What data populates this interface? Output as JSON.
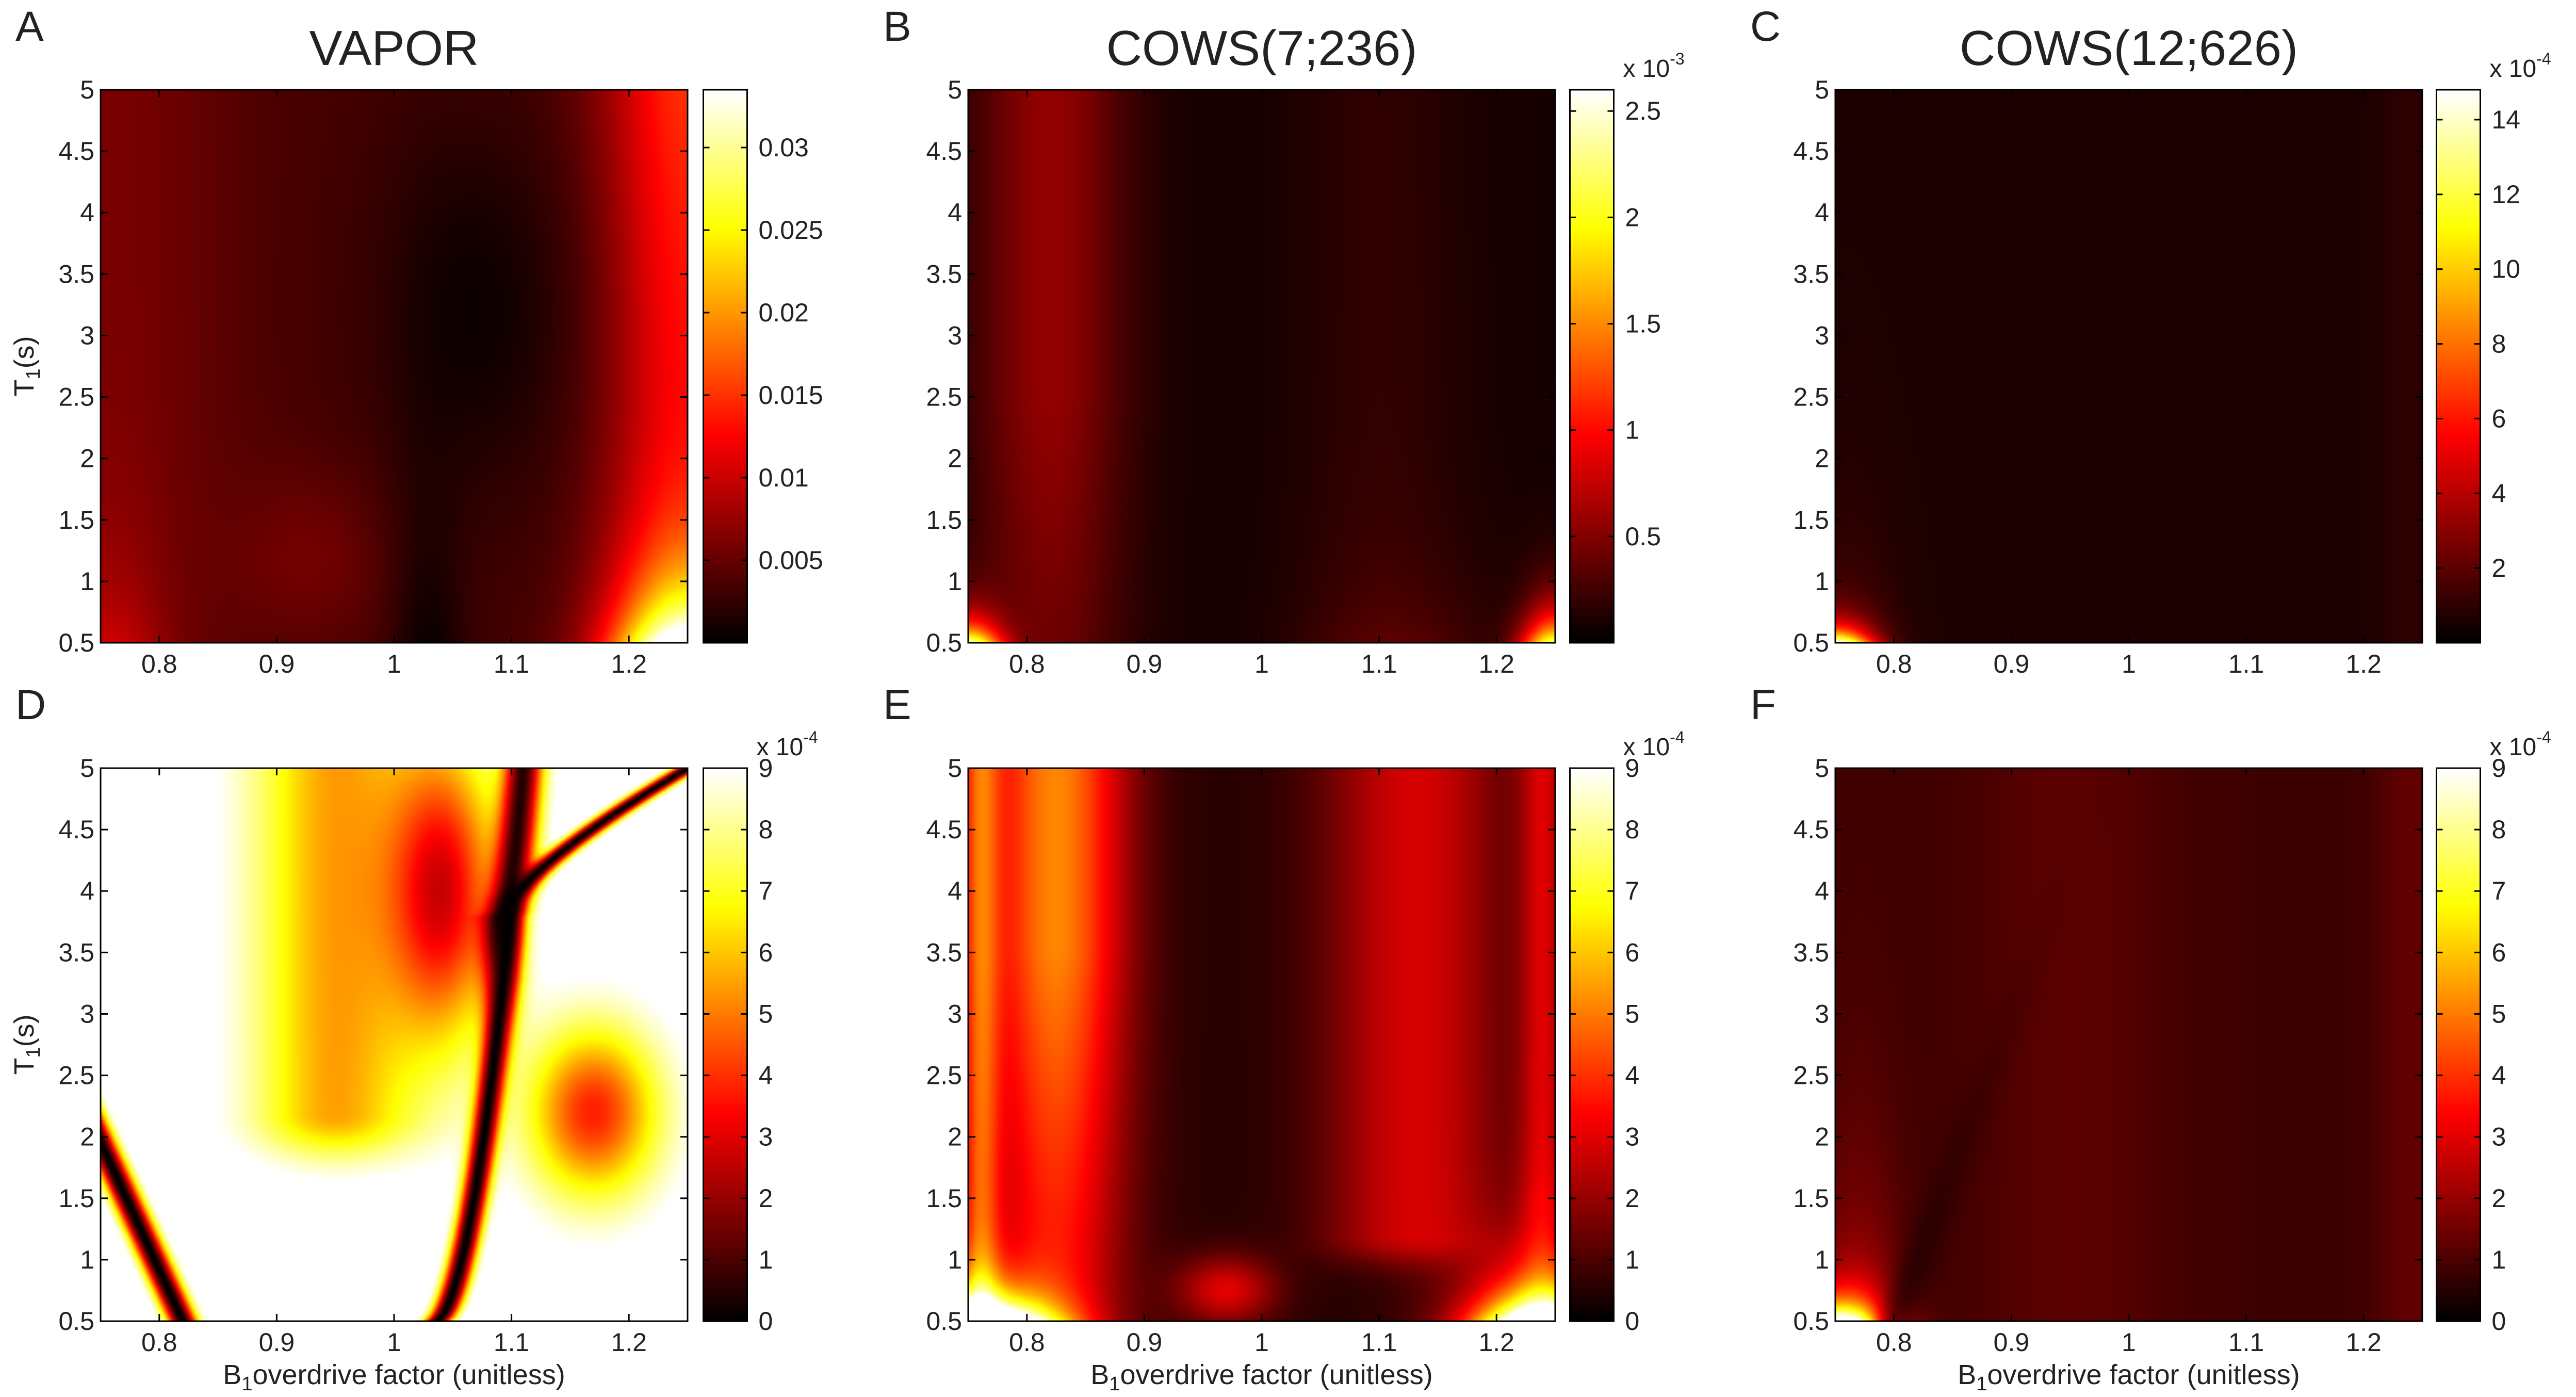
{
  "figure": {
    "description_colormap": "hot",
    "x_label": {
      "prefix": "B",
      "subscript": "1",
      "suffix": "overdrive factor (unitless)"
    },
    "y_label": {
      "prefix": "T",
      "subscript": "1",
      "suffix": "(s)"
    }
  },
  "chart_data": [
    {
      "type": "heatmap",
      "panel": "A",
      "title": "VAPOR",
      "xlabel": "",
      "ylabel": "T1(s)",
      "xlim": [
        0.75,
        1.25
      ],
      "ylim": [
        0.5,
        5
      ],
      "xticks": [
        0.8,
        0.9,
        1,
        1.1,
        1.2
      ],
      "xtick_labels": [
        "0.8",
        "0.9",
        "1",
        "1.1",
        "1.2"
      ],
      "yticks": [
        0.5,
        1,
        1.5,
        2,
        2.5,
        3,
        3.5,
        4,
        4.5,
        5
      ],
      "ytick_labels": [
        "0.5",
        "1",
        "1.5",
        "2",
        "2.5",
        "3",
        "3.5",
        "4",
        "4.5",
        "5"
      ],
      "colorbar": {
        "range": [
          0,
          0.0335
        ],
        "ticks": [
          0.005,
          0.01,
          0.015,
          0.02,
          0.025,
          0.03
        ],
        "tick_labels": [
          "0.005",
          "0.01",
          "0.015",
          "0.02",
          "0.025",
          "0.03"
        ],
        "multiplier": null
      },
      "pattern": "vapor-error-full-scale"
    },
    {
      "type": "heatmap",
      "panel": "B",
      "title": "COWS(7;236)",
      "xlabel": "",
      "ylabel": "",
      "xlim": [
        0.75,
        1.25
      ],
      "ylim": [
        0.5,
        5
      ],
      "xticks": [
        0.8,
        0.9,
        1,
        1.1,
        1.2
      ],
      "xtick_labels": [
        "0.8",
        "0.9",
        "1",
        "1.1",
        "1.2"
      ],
      "yticks": [
        0.5,
        1,
        1.5,
        2,
        2.5,
        3,
        3.5,
        4,
        4.5,
        5
      ],
      "ytick_labels": [
        "0.5",
        "1",
        "1.5",
        "2",
        "2.5",
        "3",
        "3.5",
        "4",
        "4.5",
        "5"
      ],
      "colorbar": {
        "range": [
          0,
          2.6
        ],
        "ticks": [
          0.5,
          1,
          1.5,
          2,
          2.5
        ],
        "tick_labels": [
          "0.5",
          "1",
          "1.5",
          "2",
          "2.5"
        ],
        "multiplier": {
          "base": "x 10",
          "exponent": "-3"
        }
      },
      "pattern": "cows7-error-full-scale"
    },
    {
      "type": "heatmap",
      "panel": "C",
      "title": "COWS(12;626)",
      "xlabel": "",
      "ylabel": "",
      "xlim": [
        0.75,
        1.25
      ],
      "ylim": [
        0.5,
        5
      ],
      "xticks": [
        0.8,
        0.9,
        1,
        1.1,
        1.2
      ],
      "xtick_labels": [
        "0.8",
        "0.9",
        "1",
        "1.1",
        "1.2"
      ],
      "yticks": [
        0.5,
        1,
        1.5,
        2,
        2.5,
        3,
        3.5,
        4,
        4.5,
        5
      ],
      "ytick_labels": [
        "0.5",
        "1",
        "1.5",
        "2",
        "2.5",
        "3",
        "3.5",
        "4",
        "4.5",
        "5"
      ],
      "colorbar": {
        "range": [
          0,
          14.8
        ],
        "ticks": [
          2,
          4,
          6,
          8,
          10,
          12,
          14
        ],
        "tick_labels": [
          "2",
          "4",
          "6",
          "8",
          "10",
          "12",
          "14"
        ],
        "multiplier": {
          "base": "x 10",
          "exponent": "-4"
        }
      },
      "pattern": "cows12-error-full-scale"
    },
    {
      "type": "heatmap",
      "panel": "D",
      "title": "",
      "xlabel": "B1overdrive factor (unitless)",
      "ylabel": "T1(s)",
      "xlim": [
        0.75,
        1.25
      ],
      "ylim": [
        0.5,
        5
      ],
      "xticks": [
        0.8,
        0.9,
        1,
        1.1,
        1.2
      ],
      "xtick_labels": [
        "0.8",
        "0.9",
        "1",
        "1.1",
        "1.2"
      ],
      "yticks": [
        0.5,
        1,
        1.5,
        2,
        2.5,
        3,
        3.5,
        4,
        4.5,
        5
      ],
      "ytick_labels": [
        "0.5",
        "1",
        "1.5",
        "2",
        "2.5",
        "3",
        "3.5",
        "4",
        "4.5",
        "5"
      ],
      "colorbar": {
        "range": [
          0,
          9
        ],
        "ticks": [
          0,
          1,
          2,
          3,
          4,
          5,
          6,
          7,
          8,
          9
        ],
        "tick_labels": [
          "0",
          "1",
          "2",
          "3",
          "4",
          "5",
          "6",
          "7",
          "8",
          "9"
        ],
        "multiplier": {
          "base": "x 10",
          "exponent": "-4"
        }
      },
      "pattern": "vapor-error-clipped"
    },
    {
      "type": "heatmap",
      "panel": "E",
      "title": "",
      "xlabel": "B1overdrive factor (unitless)",
      "ylabel": "",
      "xlim": [
        0.75,
        1.25
      ],
      "ylim": [
        0.5,
        5
      ],
      "xticks": [
        0.8,
        0.9,
        1,
        1.1,
        1.2
      ],
      "xtick_labels": [
        "0.8",
        "0.9",
        "1",
        "1.1",
        "1.2"
      ],
      "yticks": [
        0.5,
        1,
        1.5,
        2,
        2.5,
        3,
        3.5,
        4,
        4.5,
        5
      ],
      "ytick_labels": [
        "0.5",
        "1",
        "1.5",
        "2",
        "2.5",
        "3",
        "3.5",
        "4",
        "4.5",
        "5"
      ],
      "colorbar": {
        "range": [
          0,
          9
        ],
        "ticks": [
          0,
          1,
          2,
          3,
          4,
          5,
          6,
          7,
          8,
          9
        ],
        "tick_labels": [
          "0",
          "1",
          "2",
          "3",
          "4",
          "5",
          "6",
          "7",
          "8",
          "9"
        ],
        "multiplier": {
          "base": "x 10",
          "exponent": "-4"
        }
      },
      "pattern": "cows7-error-clipped"
    },
    {
      "type": "heatmap",
      "panel": "F",
      "title": "",
      "xlabel": "B1overdrive factor (unitless)",
      "ylabel": "",
      "xlim": [
        0.75,
        1.25
      ],
      "ylim": [
        0.5,
        5
      ],
      "xticks": [
        0.8,
        0.9,
        1,
        1.1,
        1.2
      ],
      "xtick_labels": [
        "0.8",
        "0.9",
        "1",
        "1.1",
        "1.2"
      ],
      "yticks": [
        0.5,
        1,
        1.5,
        2,
        2.5,
        3,
        3.5,
        4,
        4.5,
        5
      ],
      "ytick_labels": [
        "0.5",
        "1",
        "1.5",
        "2",
        "2.5",
        "3",
        "3.5",
        "4",
        "4.5",
        "5"
      ],
      "colorbar": {
        "range": [
          0,
          9
        ],
        "ticks": [
          0,
          1,
          2,
          3,
          4,
          5,
          6,
          7,
          8,
          9
        ],
        "tick_labels": [
          "0",
          "1",
          "2",
          "3",
          "4",
          "5",
          "6",
          "7",
          "8",
          "9"
        ],
        "multiplier": {
          "base": "x 10",
          "exponent": "-4"
        }
      },
      "pattern": "cows12-error-clipped"
    }
  ]
}
